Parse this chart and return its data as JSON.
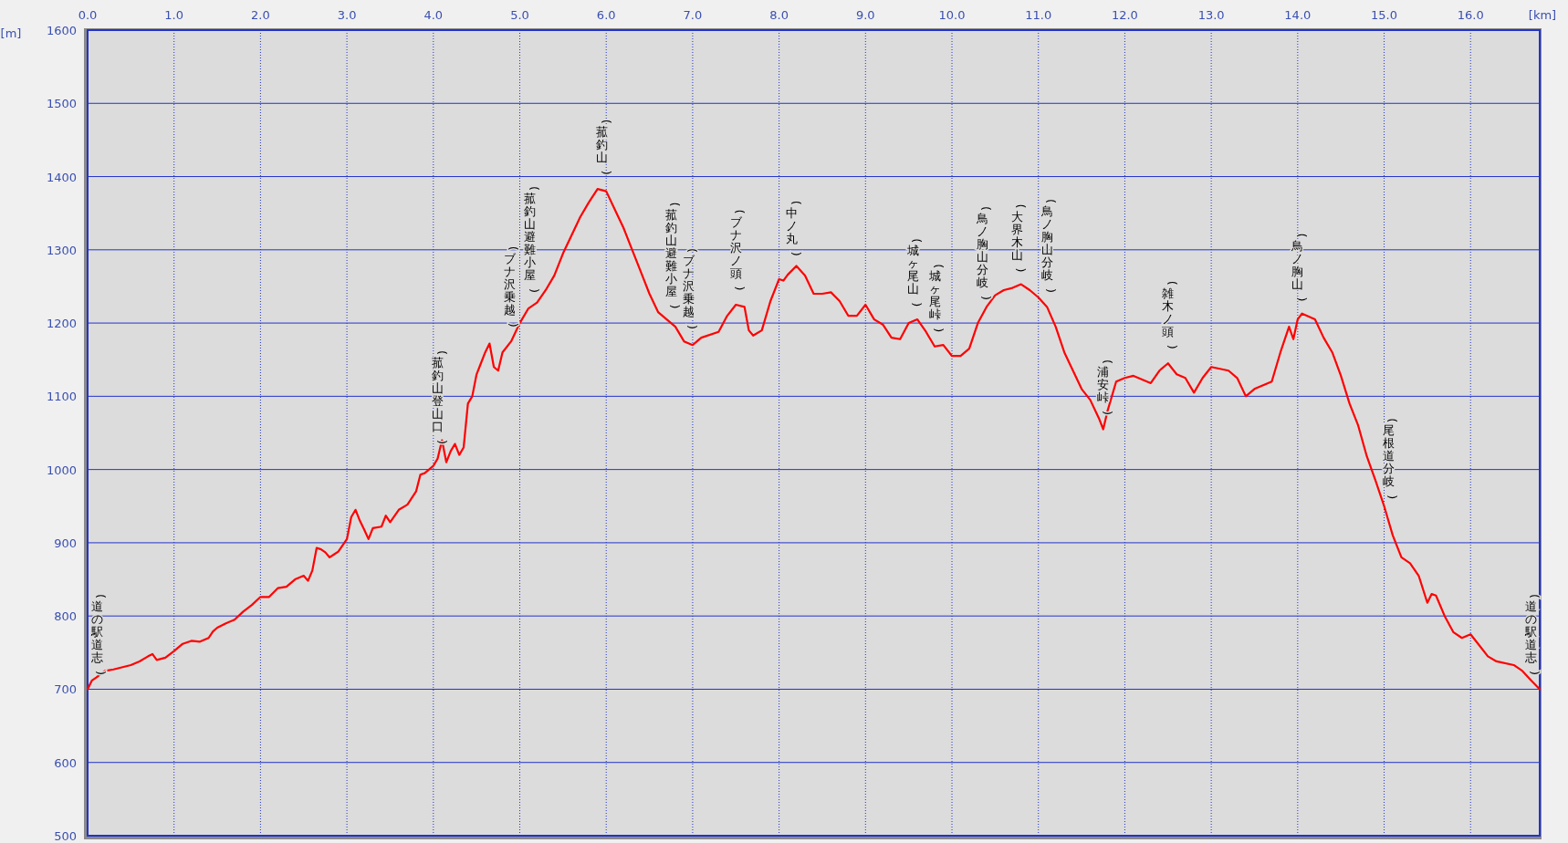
{
  "chart_data": {
    "type": "line",
    "xlabel": "[km]",
    "ylabel": "[m]",
    "xlim": [
      0,
      16.8
    ],
    "ylim": [
      500,
      1600
    ],
    "xticks": [
      {
        "value": 0,
        "label": "0.0"
      },
      {
        "value": 1,
        "label": "1.0"
      },
      {
        "value": 2,
        "label": "2.0"
      },
      {
        "value": 3,
        "label": "3.0"
      },
      {
        "value": 4,
        "label": "4.0"
      },
      {
        "value": 5,
        "label": "5.0"
      },
      {
        "value": 6,
        "label": "6.0"
      },
      {
        "value": 7,
        "label": "7.0"
      },
      {
        "value": 8,
        "label": "8.0"
      },
      {
        "value": 9,
        "label": "9.0"
      },
      {
        "value": 10,
        "label": "10.0"
      },
      {
        "value": 11,
        "label": "11.0"
      },
      {
        "value": 12,
        "label": "12.0"
      },
      {
        "value": 13,
        "label": "13.0"
      },
      {
        "value": 14,
        "label": "14.0"
      },
      {
        "value": 15,
        "label": "15.0"
      },
      {
        "value": 16,
        "label": "16.0"
      }
    ],
    "yticks": [
      500,
      600,
      700,
      800,
      900,
      1000,
      1100,
      1200,
      1300,
      1400,
      1500,
      1600
    ],
    "grid": true,
    "series": [
      {
        "color": "#ff0000",
        "x": [
          0,
          0.05,
          0.1,
          0.2,
          0.3,
          0.5,
          0.6,
          0.7,
          0.75,
          0.8,
          0.9,
          1.0,
          1.1,
          1.2,
          1.3,
          1.4,
          1.45,
          1.5,
          1.6,
          1.7,
          1.8,
          1.9,
          2.0,
          2.1,
          2.2,
          2.3,
          2.4,
          2.5,
          2.55,
          2.6,
          2.65,
          2.7,
          2.75,
          2.8,
          2.85,
          2.9,
          3.0,
          3.05,
          3.1,
          3.15,
          3.2,
          3.25,
          3.3,
          3.4,
          3.45,
          3.5,
          3.6,
          3.7,
          3.8,
          3.85,
          3.9,
          4.0,
          4.05,
          4.1,
          4.15,
          4.2,
          4.25,
          4.3,
          4.35,
          4.4,
          4.45,
          4.5,
          4.55,
          4.6,
          4.65,
          4.7,
          4.75,
          4.8,
          4.9,
          5.0,
          5.1,
          5.2,
          5.3,
          5.4,
          5.5,
          5.6,
          5.7,
          5.8,
          5.9,
          6.0,
          6.1,
          6.2,
          6.3,
          6.4,
          6.5,
          6.6,
          6.7,
          6.8,
          6.9,
          7.0,
          7.1,
          7.3,
          7.4,
          7.5,
          7.6,
          7.65,
          7.7,
          7.8,
          7.9,
          8.0,
          8.05,
          8.1,
          8.2,
          8.3,
          8.4,
          8.5,
          8.6,
          8.7,
          8.8,
          8.9,
          9.0,
          9.1,
          9.2,
          9.3,
          9.4,
          9.5,
          9.6,
          9.7,
          9.8,
          9.9,
          10.0,
          10.1,
          10.2,
          10.3,
          10.4,
          10.5,
          10.6,
          10.7,
          10.8,
          10.9,
          11.0,
          11.1,
          11.2,
          11.3,
          11.4,
          11.5,
          11.6,
          11.7,
          11.75,
          11.8,
          11.9,
          12.0,
          12.1,
          12.3,
          12.4,
          12.5,
          12.6,
          12.7,
          12.8,
          12.9,
          13.0,
          13.2,
          13.3,
          13.4,
          13.5,
          13.6,
          13.7,
          13.8,
          13.9,
          13.95,
          14.0,
          14.05,
          14.2,
          14.3,
          14.4,
          14.5,
          14.6,
          14.7,
          14.8,
          14.9,
          15.0,
          15.1,
          15.2,
          15.3,
          15.4,
          15.5,
          15.55,
          15.6,
          15.7,
          15.8,
          15.9,
          16.0,
          16.1,
          16.2,
          16.3,
          16.5,
          16.6,
          16.7,
          16.8
        ],
        "values": [
          700,
          712,
          716,
          725,
          727,
          733,
          738,
          745,
          748,
          740,
          743,
          752,
          762,
          766,
          765,
          770,
          779,
          784,
          790,
          795,
          806,
          815,
          826,
          826,
          838,
          840,
          850,
          855,
          848,
          862,
          893,
          891,
          887,
          880,
          884,
          888,
          905,
          935,
          945,
          930,
          918,
          905,
          920,
          922,
          937,
          928,
          945,
          952,
          970,
          993,
          995,
          1005,
          1015,
          1040,
          1010,
          1025,
          1035,
          1020,
          1030,
          1090,
          1100,
          1130,
          1145,
          1160,
          1172,
          1140,
          1135,
          1160,
          1175,
          1200,
          1220,
          1228,
          1245,
          1265,
          1295,
          1320,
          1345,
          1365,
          1383,
          1380,
          1355,
          1330,
          1300,
          1270,
          1240,
          1215,
          1205,
          1195,
          1175,
          1170,
          1180,
          1188,
          1210,
          1225,
          1222,
          1190,
          1183,
          1190,
          1230,
          1260,
          1258,
          1266,
          1278,
          1265,
          1240,
          1240,
          1242,
          1230,
          1210,
          1210,
          1225,
          1205,
          1198,
          1180,
          1178,
          1200,
          1205,
          1188,
          1168,
          1170,
          1155,
          1155,
          1165,
          1200,
          1222,
          1238,
          1245,
          1248,
          1253,
          1245,
          1235,
          1222,
          1195,
          1160,
          1135,
          1110,
          1095,
          1070,
          1055,
          1080,
          1120,
          1125,
          1128,
          1118,
          1135,
          1145,
          1130,
          1125,
          1105,
          1125,
          1140,
          1135,
          1125,
          1100,
          1110,
          1115,
          1120,
          1160,
          1195,
          1178,
          1205,
          1213,
          1205,
          1180,
          1160,
          1128,
          1090,
          1060,
          1018,
          985,
          950,
          910,
          880,
          872,
          855,
          818,
          830,
          828,
          800,
          778,
          770,
          775,
          760,
          745,
          738,
          733,
          725,
          712,
          700
        ]
      }
    ],
    "annotations": [
      {
        "text": "(道の駅道志)",
        "x": 0,
        "y": 700
      },
      {
        "text": "(菰釣山登山口)",
        "x": 4.05,
        "y": 1015
      },
      {
        "text": "(ブナ沢乗越)",
        "x": 4.88,
        "y": 1175
      },
      {
        "text": "(菰釣山避難小屋)",
        "x": 5.12,
        "y": 1222
      },
      {
        "text": "(菰釣山)",
        "x": 5.95,
        "y": 1383
      },
      {
        "text": "(菰釣山避難小屋)",
        "x": 6.75,
        "y": 1200
      },
      {
        "text": "(ブナ沢乗越)",
        "x": 6.95,
        "y": 1172
      },
      {
        "text": "(ブナ沢ノ頭)",
        "x": 7.5,
        "y": 1225
      },
      {
        "text": "(中ノ丸)",
        "x": 8.15,
        "y": 1272
      },
      {
        "text": "(城ヶ尾山)",
        "x": 9.55,
        "y": 1203
      },
      {
        "text": "(城ヶ尾峠)",
        "x": 9.8,
        "y": 1168
      },
      {
        "text": "(鳥ノ胸山分岐)",
        "x": 10.35,
        "y": 1212
      },
      {
        "text": "(大界木山)",
        "x": 10.75,
        "y": 1250
      },
      {
        "text": "(鳥ノ胸山分岐)",
        "x": 11.1,
        "y": 1222
      },
      {
        "text": "(浦安峠)",
        "x": 11.75,
        "y": 1055
      },
      {
        "text": "(雑木ノ頭)",
        "x": 12.5,
        "y": 1145
      },
      {
        "text": "(鳥ノ胸山)",
        "x": 14.0,
        "y": 1210
      },
      {
        "text": "(尾根道分岐)",
        "x": 15.05,
        "y": 940
      },
      {
        "text": "(道の駅道志)",
        "x": 16.8,
        "y": 700
      }
    ]
  }
}
